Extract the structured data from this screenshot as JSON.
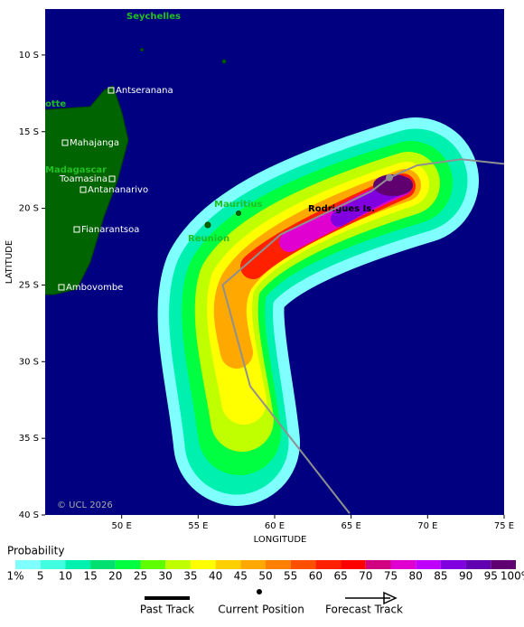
{
  "map": {
    "xlabel": "LONGITUDE",
    "ylabel": "LATITUDE",
    "xlim": [
      45,
      75
    ],
    "ylim": [
      -7,
      -40
    ],
    "xticks": [
      {
        "value": 50,
        "label": "50 E"
      },
      {
        "value": 55,
        "label": "55 E"
      },
      {
        "value": 60,
        "label": "60 E"
      },
      {
        "value": 65,
        "label": "65 E"
      },
      {
        "value": 70,
        "label": "70 E"
      },
      {
        "value": 75,
        "label": "75 E"
      }
    ],
    "yticks": [
      {
        "value": -10,
        "label": "10 S"
      },
      {
        "value": -15,
        "label": "15 S"
      },
      {
        "value": -20,
        "label": "20 S"
      },
      {
        "value": -25,
        "label": "25 S"
      },
      {
        "value": -30,
        "label": "30 S"
      },
      {
        "value": -35,
        "label": "35 S"
      },
      {
        "value": -40,
        "label": "40 S"
      }
    ],
    "copyright": "© UCL 2026",
    "places": [
      "Seychelles",
      "Antseranana",
      "otte",
      "Mahajanga",
      "Madagascar",
      "Toamasina",
      "Antananarivo",
      "Fianarantsoa",
      "Ambovombe",
      "Mauritius",
      "Reunion",
      "Rodrigues Is."
    ],
    "track": {
      "lon": [
        64.9,
        58.4,
        56.6,
        60.4,
        66.3,
        67.5,
        69.3,
        72.2,
        75
      ],
      "lat": [
        -39.9,
        -31.6,
        -25.0,
        -21.7,
        -18.9,
        -18.0,
        -17.2,
        -16.8,
        -17.1
      ],
      "color": "#909090"
    },
    "current_position": {
      "lon": 67.5,
      "lat": -18.0
    }
  },
  "legend": {
    "title": "Probability",
    "levels": [
      "1%",
      "5",
      "10",
      "15",
      "20",
      "25",
      "30",
      "35",
      "40",
      "45",
      "50",
      "55",
      "60",
      "65",
      "70",
      "75",
      "80",
      "85",
      "90",
      "95",
      "100%"
    ],
    "colors": [
      "#80ffff",
      "#40ffe0",
      "#00f0b0",
      "#00e070",
      "#00ff40",
      "#60ff00",
      "#c0ff00",
      "#ffff00",
      "#ffd000",
      "#ffa800",
      "#ff8000",
      "#ff5000",
      "#ff2000",
      "#ff0000",
      "#d00080",
      "#e000d0",
      "#c000ff",
      "#8000e0",
      "#6000b0",
      "#600070"
    ],
    "past_track": "Past Track",
    "current_position": "Current Position",
    "forecast_track": "Forecast Track"
  }
}
